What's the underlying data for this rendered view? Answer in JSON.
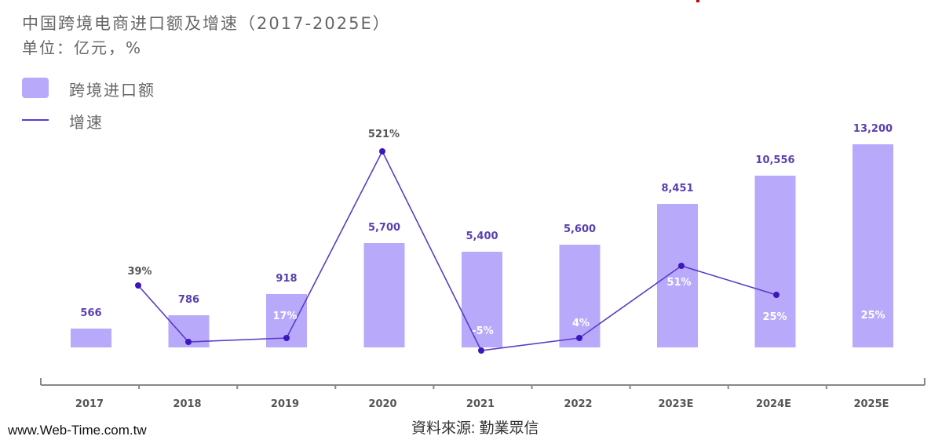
{
  "chart_data": {
    "type": "bar",
    "title": "中国跨境电商进口额及增速（2017-2025E）",
    "subtitle": "单位：亿元，%",
    "categories": [
      "2017",
      "2018",
      "2019",
      "2020",
      "2021",
      "2022",
      "2023E",
      "2024E",
      "2025E"
    ],
    "series": [
      {
        "name": "跨境进口额",
        "type": "bar",
        "values": [
          566,
          786,
          918,
          5700,
          5400,
          5600,
          8451,
          10556,
          13200
        ],
        "labels": [
          "566",
          "786",
          "918",
          "5,700",
          "5,400",
          "5,600",
          "8,451",
          "10,556",
          "13,200"
        ]
      },
      {
        "name": "增速",
        "type": "line",
        "values": [
          null,
          39,
          17,
          521,
          -5,
          4,
          51,
          25,
          25
        ],
        "labels": [
          "",
          "39%",
          "17%",
          "521%",
          "-5%",
          "4%",
          "51%",
          "25%",
          "25%"
        ]
      }
    ],
    "legend": "top-left",
    "grid": false
  },
  "source": "資料來源: 勤業眾信",
  "watermark": "www.Web-Time.com.tw",
  "colors": {
    "bar": "#b8a9fb",
    "line": "#5b3cc4",
    "dot": "#3d16c0",
    "value_label": "#5a3fb0"
  }
}
